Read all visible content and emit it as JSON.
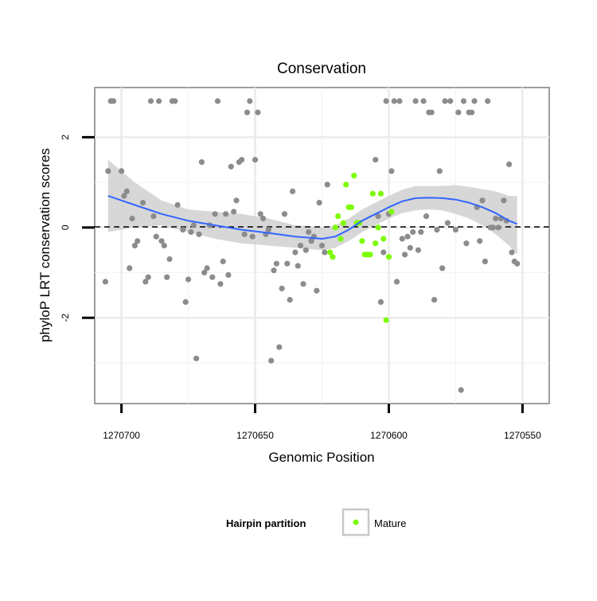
{
  "chart_data": {
    "type": "scatter",
    "title": "Conservation",
    "xlabel": "Genomic Position",
    "ylabel": "phyloP LRT conservation scores",
    "x_reversed": true,
    "xlim": [
      1270710,
      1270540
    ],
    "ylim": [
      -3.9,
      3.1
    ],
    "x_ticks": [
      1270700,
      1270650,
      1270600,
      1270550
    ],
    "x_tick_labels": [
      "1270700",
      "1270650",
      "1270600",
      "1270550"
    ],
    "y_ticks": [
      -2,
      0,
      2
    ],
    "y_tick_labels": [
      "-2",
      "0",
      "2"
    ],
    "grid": true,
    "reference_line": {
      "y": 0,
      "style": "dashed"
    },
    "legend": {
      "title": "Hairpin partition",
      "position": "bottom",
      "entries": [
        "Mature"
      ]
    },
    "colors": {
      "other": "#8c8c8c",
      "mature": "#7cfc00",
      "smooth": "#3366ff",
      "band": "#d3d3d3",
      "frame": "#7f7f7f"
    },
    "series": [
      {
        "group": "other",
        "points": [
          [
            1270705,
            1.25
          ],
          [
            1270706,
            -1.2
          ],
          [
            1270704,
            2.8
          ],
          [
            1270703,
            2.8
          ],
          [
            1270700,
            1.25
          ],
          [
            1270699,
            0.7
          ],
          [
            1270698,
            0.8
          ],
          [
            1270697,
            -0.9
          ],
          [
            1270696,
            0.2
          ],
          [
            1270695,
            -0.4
          ],
          [
            1270694,
            -0.3
          ],
          [
            1270692,
            0.55
          ],
          [
            1270691,
            -1.2
          ],
          [
            1270690,
            -1.1
          ],
          [
            1270689,
            2.8
          ],
          [
            1270688,
            0.25
          ],
          [
            1270687,
            -0.2
          ],
          [
            1270686,
            2.8
          ],
          [
            1270685,
            -0.3
          ],
          [
            1270684,
            -0.4
          ],
          [
            1270683,
            -1.1
          ],
          [
            1270682,
            -0.7
          ],
          [
            1270681,
            2.8
          ],
          [
            1270680,
            2.8
          ],
          [
            1270679,
            0.5
          ],
          [
            1270677,
            -0.05
          ],
          [
            1270676,
            -1.65
          ],
          [
            1270675,
            -1.15
          ],
          [
            1270674,
            -0.1
          ],
          [
            1270673,
            0.05
          ],
          [
            1270672,
            -2.9
          ],
          [
            1270671,
            -0.15
          ],
          [
            1270670,
            1.45
          ],
          [
            1270669,
            -1.0
          ],
          [
            1270668,
            -0.9
          ],
          [
            1270667,
            0.05
          ],
          [
            1270666,
            -1.1
          ],
          [
            1270665,
            0.3
          ],
          [
            1270664,
            2.8
          ],
          [
            1270663,
            -1.25
          ],
          [
            1270662,
            -0.75
          ],
          [
            1270661,
            0.3
          ],
          [
            1270660,
            -1.05
          ],
          [
            1270659,
            1.35
          ],
          [
            1270658,
            0.35
          ],
          [
            1270657,
            0.6
          ],
          [
            1270656,
            1.45
          ],
          [
            1270655,
            1.5
          ],
          [
            1270654,
            -0.15
          ],
          [
            1270653,
            2.55
          ],
          [
            1270652,
            2.8
          ],
          [
            1270651,
            -0.2
          ],
          [
            1270650,
            1.5
          ],
          [
            1270649,
            2.55
          ],
          [
            1270648,
            0.3
          ],
          [
            1270647,
            0.2
          ],
          [
            1270646,
            -0.15
          ],
          [
            1270645,
            -0.05
          ],
          [
            1270644,
            -2.95
          ],
          [
            1270643,
            -0.95
          ],
          [
            1270642,
            -0.8
          ],
          [
            1270641,
            -2.65
          ],
          [
            1270640,
            -1.35
          ],
          [
            1270639,
            0.3
          ],
          [
            1270638,
            -0.8
          ],
          [
            1270637,
            -1.6
          ],
          [
            1270636,
            0.8
          ],
          [
            1270635,
            -0.55
          ],
          [
            1270634,
            -0.85
          ],
          [
            1270633,
            -0.4
          ],
          [
            1270632,
            -1.25
          ],
          [
            1270631,
            -0.5
          ],
          [
            1270630,
            -0.1
          ],
          [
            1270629,
            -0.3
          ],
          [
            1270628,
            -0.2
          ],
          [
            1270627,
            -1.4
          ],
          [
            1270626,
            0.55
          ],
          [
            1270625,
            -0.4
          ],
          [
            1270624,
            -0.55
          ],
          [
            1270623,
            0.95
          ],
          [
            1270605,
            1.5
          ],
          [
            1270604,
            0.25
          ],
          [
            1270603,
            -1.65
          ],
          [
            1270602,
            -0.55
          ],
          [
            1270601,
            2.8
          ],
          [
            1270600,
            0.3
          ],
          [
            1270599,
            1.25
          ],
          [
            1270598,
            2.8
          ],
          [
            1270597,
            -1.2
          ],
          [
            1270596,
            2.8
          ],
          [
            1270595,
            -0.25
          ],
          [
            1270594,
            -0.6
          ],
          [
            1270593,
            -0.2
          ],
          [
            1270592,
            -0.45
          ],
          [
            1270591,
            -0.1
          ],
          [
            1270590,
            2.8
          ],
          [
            1270589,
            -0.5
          ],
          [
            1270588,
            -0.1
          ],
          [
            1270587,
            2.8
          ],
          [
            1270586,
            0.25
          ],
          [
            1270585,
            2.55
          ],
          [
            1270584,
            2.55
          ],
          [
            1270583,
            -1.6
          ],
          [
            1270582,
            -0.05
          ],
          [
            1270581,
            1.25
          ],
          [
            1270580,
            -0.9
          ],
          [
            1270579,
            2.8
          ],
          [
            1270578,
            0.1
          ],
          [
            1270577,
            2.8
          ],
          [
            1270575,
            -0.05
          ],
          [
            1270574,
            2.55
          ],
          [
            1270573,
            -3.6
          ],
          [
            1270572,
            2.8
          ],
          [
            1270571,
            -0.35
          ],
          [
            1270570,
            2.55
          ],
          [
            1270569,
            2.55
          ],
          [
            1270568,
            2.8
          ],
          [
            1270567,
            0.45
          ],
          [
            1270566,
            -0.3
          ],
          [
            1270565,
            0.6
          ],
          [
            1270564,
            -0.75
          ],
          [
            1270563,
            2.8
          ],
          [
            1270562,
            0.0
          ],
          [
            1270561,
            0.0
          ],
          [
            1270560,
            0.2
          ],
          [
            1270559,
            0.0
          ],
          [
            1270558,
            0.2
          ],
          [
            1270557,
            0.6
          ],
          [
            1270556,
            0.15
          ],
          [
            1270555,
            1.4
          ],
          [
            1270554,
            -0.55
          ],
          [
            1270553,
            -0.75
          ],
          [
            1270552,
            -0.8
          ]
        ]
      },
      {
        "group": "mature",
        "name": "Mature",
        "points": [
          [
            1270622,
            -0.55
          ],
          [
            1270621,
            -0.65
          ],
          [
            1270620,
            0.0
          ],
          [
            1270619,
            0.25
          ],
          [
            1270618,
            -0.25
          ],
          [
            1270617,
            0.1
          ],
          [
            1270616,
            0.95
          ],
          [
            1270615,
            0.45
          ],
          [
            1270614,
            0.45
          ],
          [
            1270613,
            1.15
          ],
          [
            1270612,
            0.1
          ],
          [
            1270611,
            0.1
          ],
          [
            1270610,
            -0.3
          ],
          [
            1270609,
            -0.6
          ],
          [
            1270608,
            -0.6
          ],
          [
            1270607,
            -0.6
          ],
          [
            1270606,
            0.75
          ],
          [
            1270605,
            -0.35
          ],
          [
            1270604,
            0.0
          ],
          [
            1270603,
            0.75
          ],
          [
            1270602,
            -0.25
          ],
          [
            1270601,
            -2.05
          ],
          [
            1270600,
            -0.65
          ],
          [
            1270599,
            0.35
          ]
        ]
      }
    ],
    "smooth": {
      "x": [
        1270705,
        1270695,
        1270685,
        1270675,
        1270665,
        1270655,
        1270645,
        1270635,
        1270625,
        1270620,
        1270615,
        1270610,
        1270605,
        1270600,
        1270595,
        1270590,
        1270585,
        1270580,
        1270575,
        1270570,
        1270565,
        1270560,
        1270555,
        1270552
      ],
      "y": [
        0.7,
        0.5,
        0.3,
        0.15,
        0.05,
        -0.05,
        -0.12,
        -0.2,
        -0.25,
        -0.2,
        -0.05,
        0.15,
        0.3,
        0.45,
        0.58,
        0.65,
        0.66,
        0.65,
        0.62,
        0.55,
        0.45,
        0.32,
        0.15,
        0.08
      ],
      "lower": [
        -0.1,
        0.0,
        0.05,
        -0.1,
        -0.25,
        -0.35,
        -0.4,
        -0.45,
        -0.5,
        -0.45,
        -0.3,
        -0.1,
        0.05,
        0.2,
        0.32,
        0.38,
        0.4,
        0.38,
        0.3,
        0.2,
        0.05,
        -0.15,
        -0.4,
        -0.6
      ],
      "upper": [
        1.5,
        1.0,
        0.6,
        0.4,
        0.35,
        0.3,
        0.2,
        0.05,
        0.0,
        0.05,
        0.2,
        0.4,
        0.55,
        0.7,
        0.84,
        0.92,
        0.92,
        0.92,
        0.94,
        0.9,
        0.85,
        0.8,
        0.7,
        0.7
      ]
    }
  }
}
